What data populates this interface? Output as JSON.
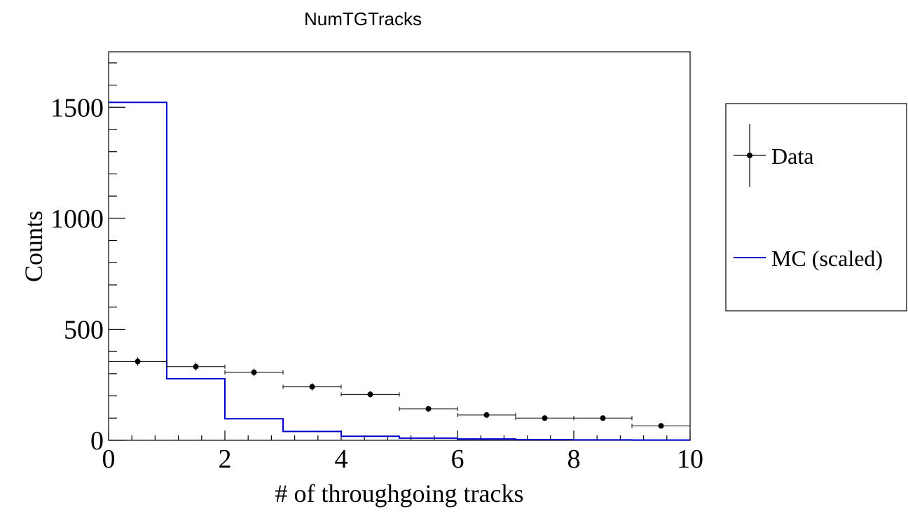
{
  "chart_data": {
    "type": "histogram",
    "title": "NumTGTracks",
    "xlabel": "# of throughgoing tracks",
    "ylabel": "Counts",
    "xlim": [
      0,
      10
    ],
    "ylim": [
      0,
      1750
    ],
    "x_ticks": [
      0,
      2,
      4,
      6,
      8,
      10
    ],
    "y_ticks": [
      0,
      500,
      1000,
      1500
    ],
    "bin_edges": [
      0,
      1,
      2,
      3,
      4,
      5,
      6,
      7,
      8,
      9,
      10
    ],
    "series": [
      {
        "name": "Data",
        "style": "points-with-errors",
        "color": "#000000",
        "values": [
          355,
          332,
          306,
          241,
          207,
          142,
          114,
          100,
          100,
          65
        ],
        "errors": [
          19,
          18,
          17,
          16,
          14,
          12,
          11,
          10,
          10,
          8
        ]
      },
      {
        "name": "MC (scaled)",
        "style": "step",
        "color": "#0000cc",
        "values": [
          1522,
          277,
          97,
          40,
          18,
          10,
          6,
          3,
          2,
          1
        ]
      }
    ],
    "legend": {
      "position": "right-outside",
      "entries": [
        "Data",
        "MC (scaled)"
      ]
    },
    "grid": false
  }
}
